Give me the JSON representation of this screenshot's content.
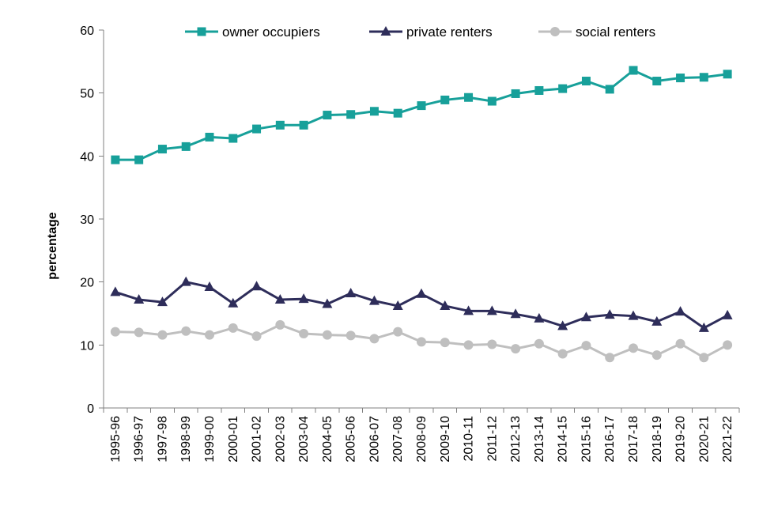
{
  "chart_data": {
    "type": "line",
    "title": "",
    "xlabel": "",
    "ylabel": "percentage",
    "ylim": [
      0,
      60
    ],
    "yticks": [
      0,
      10,
      20,
      30,
      40,
      50,
      60
    ],
    "grid": false,
    "legend_position": "top",
    "categories": [
      "1995-96",
      "1996-97",
      "1997-98",
      "1998-99",
      "1999-00",
      "2000-01",
      "2001-02",
      "2002-03",
      "2003-04",
      "2004-05",
      "2005-06",
      "2006-07",
      "2007-08",
      "2008-09",
      "2009-10",
      "2010-11",
      "2011-12",
      "2012-13",
      "2013-14",
      "2014-15",
      "2015-16",
      "2016-17",
      "2017-18",
      "2018-19",
      "2019-20",
      "2020-21",
      "2021-22"
    ],
    "series": [
      {
        "name": "owner occupiers",
        "color": "#17A09A",
        "marker": "square",
        "values": [
          39.4,
          39.4,
          41.1,
          41.5,
          43.0,
          42.8,
          44.3,
          44.9,
          44.9,
          46.5,
          46.6,
          47.1,
          46.8,
          48.0,
          48.9,
          49.3,
          48.7,
          49.9,
          50.4,
          50.7,
          51.9,
          50.6,
          53.6,
          51.9,
          52.4,
          52.5,
          53.0
        ]
      },
      {
        "name": "private renters",
        "color": "#2E2D5A",
        "marker": "triangle",
        "values": [
          18.4,
          17.2,
          16.8,
          20.0,
          19.2,
          16.6,
          19.3,
          17.2,
          17.3,
          16.5,
          18.2,
          17.0,
          16.2,
          18.1,
          16.2,
          15.4,
          15.4,
          14.9,
          14.2,
          13.0,
          14.4,
          14.8,
          14.6,
          13.7,
          15.3,
          12.7,
          14.7
        ]
      },
      {
        "name": "social renters",
        "color": "#BFBFBF",
        "marker": "circle",
        "values": [
          12.1,
          12.0,
          11.6,
          12.2,
          11.6,
          12.7,
          11.4,
          13.2,
          11.8,
          11.6,
          11.5,
          11.0,
          12.1,
          10.5,
          10.4,
          10.0,
          10.1,
          9.4,
          10.2,
          8.6,
          9.9,
          8.0,
          9.5,
          8.4,
          10.2,
          8.0,
          10.0
        ]
      }
    ]
  }
}
